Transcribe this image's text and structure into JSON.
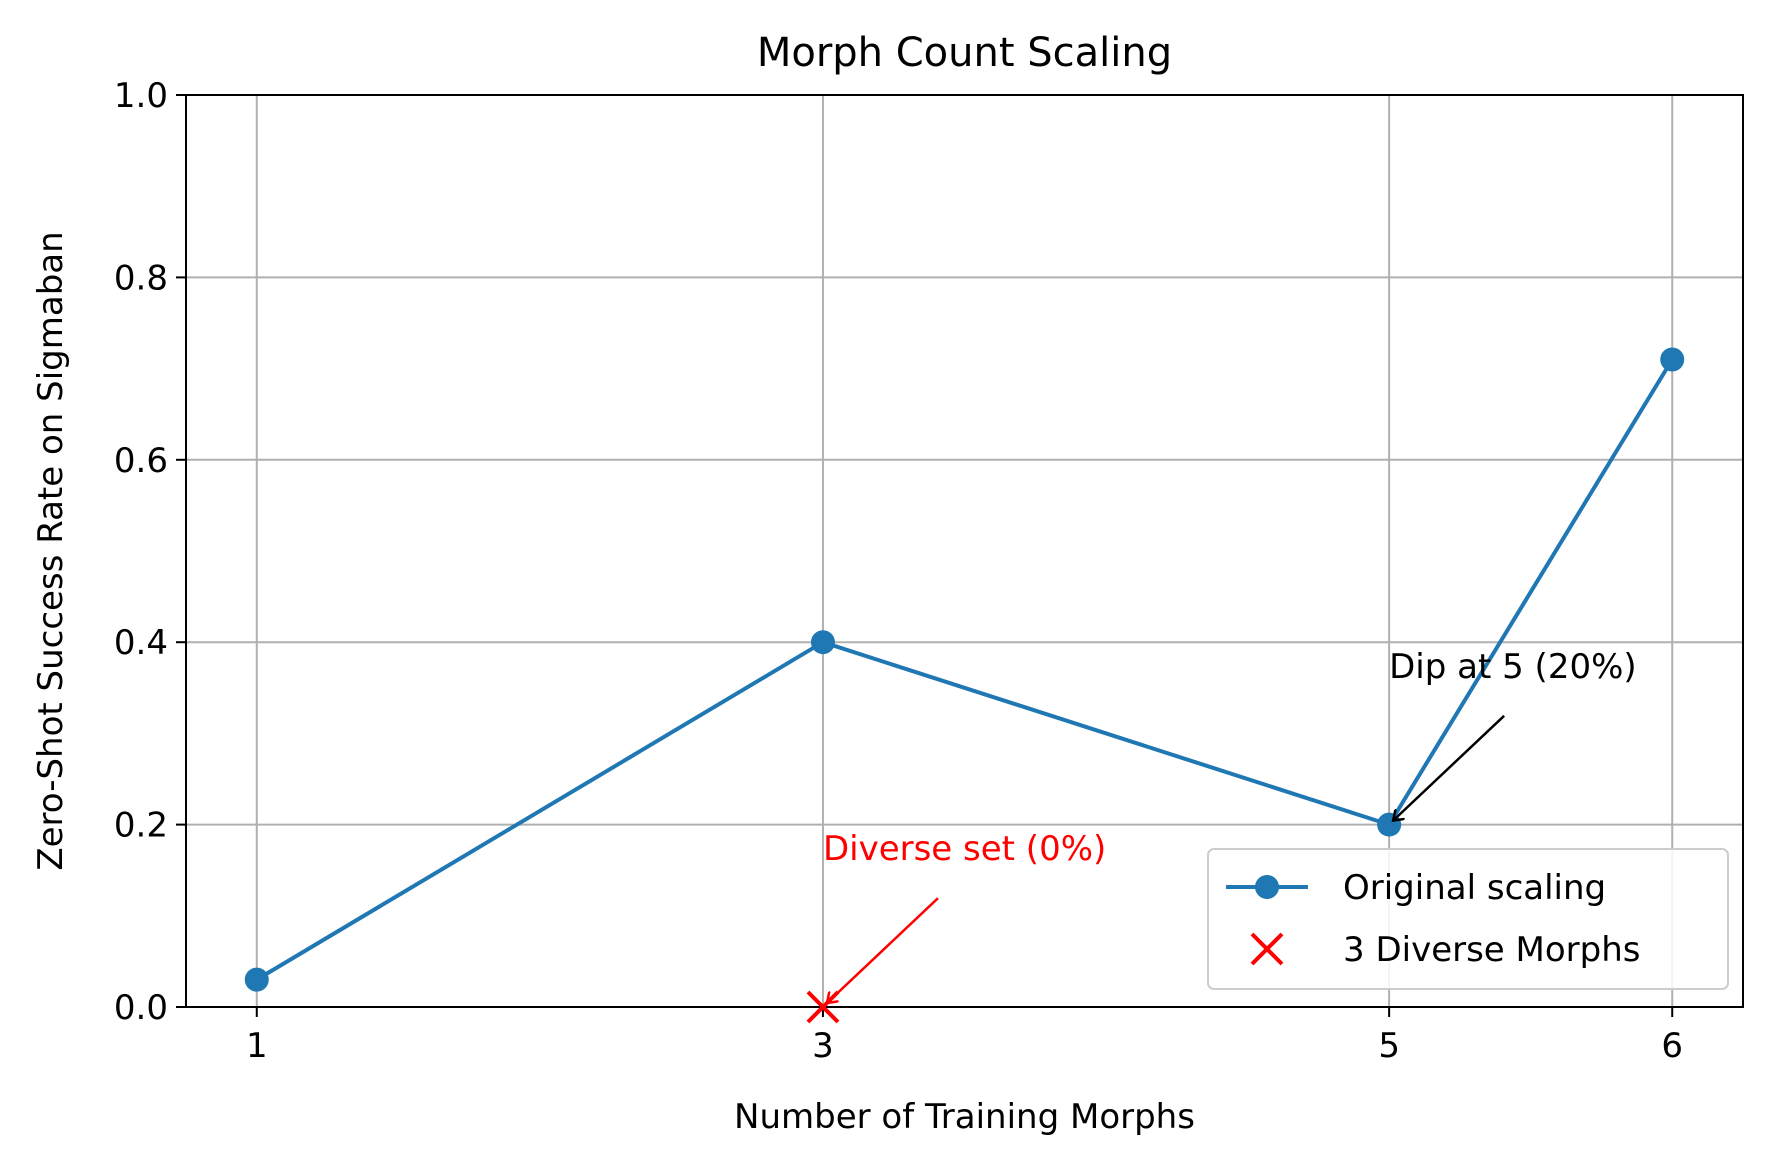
{
  "chart_data": {
    "type": "line",
    "title": "Morph Count Scaling",
    "xlabel": "Number of Training Morphs",
    "ylabel": "Zero-Shot Success Rate on Sigmaban",
    "xlim": [
      0.75,
      6.25
    ],
    "ylim": [
      0.0,
      1.0
    ],
    "x_ticks": [
      1,
      3,
      5,
      6
    ],
    "x_tick_labels": [
      "1",
      "3",
      "5",
      "6"
    ],
    "y_ticks": [
      0.0,
      0.2,
      0.4,
      0.6,
      0.8,
      1.0
    ],
    "y_tick_labels": [
      "0.0",
      "0.2",
      "0.4",
      "0.6",
      "0.8",
      "1.0"
    ],
    "grid": true,
    "legend_position": "lower-right",
    "series": [
      {
        "name": "Original scaling",
        "kind": "line",
        "marker": "circle",
        "color": "#1f77b4",
        "x": [
          1,
          3,
          5,
          6
        ],
        "y": [
          0.03,
          0.4,
          0.2,
          0.71
        ]
      },
      {
        "name": "3 Diverse Morphs",
        "kind": "scatter",
        "marker": "x",
        "color": "#ff0000",
        "x": [
          3
        ],
        "y": [
          0.0
        ]
      }
    ],
    "annotations": [
      {
        "text": "Dip at 5 (20%)",
        "point": [
          5,
          0.2
        ],
        "text_at": [
          5.0,
          0.35
        ],
        "color": "#000000"
      },
      {
        "text": "Diverse set (0%)",
        "point": [
          3,
          0.0
        ],
        "text_at": [
          3.0,
          0.15
        ],
        "color": "#ff0000"
      }
    ]
  }
}
